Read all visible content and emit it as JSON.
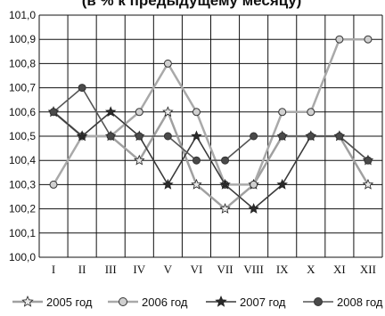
{
  "chart_data": {
    "type": "line",
    "title": "(в % к предыдущему месяцу)",
    "categories": [
      "I",
      "II",
      "III",
      "IV",
      "V",
      "VI",
      "VII",
      "VIII",
      "IX",
      "X",
      "XI",
      "XII"
    ],
    "ylim": [
      100.0,
      101.0
    ],
    "y_ticks": [
      "101,0",
      "100,9",
      "100,8",
      "100,7",
      "100,6",
      "100,5",
      "100,4",
      "100,3",
      "100,2",
      "100,1",
      "100,0"
    ],
    "grid": true,
    "legend_position": "bottom",
    "series": [
      {
        "name": "2005 год",
        "values": [
          100.6,
          100.5,
          100.5,
          100.4,
          100.6,
          100.3,
          100.2,
          100.3,
          100.5,
          100.5,
          100.5,
          100.3
        ],
        "color": "#a0a0a0",
        "marker": "star"
      },
      {
        "name": "2006 год",
        "values": [
          100.3,
          100.5,
          100.5,
          100.6,
          100.8,
          100.6,
          100.3,
          100.3,
          100.6,
          100.6,
          100.9,
          100.9
        ],
        "color": "#a9a9a9",
        "marker": "circle"
      },
      {
        "name": "2007 год",
        "values": [
          100.6,
          100.5,
          100.6,
          100.5,
          100.3,
          100.5,
          100.3,
          100.2,
          100.3,
          100.5,
          100.5,
          100.4
        ],
        "color": "#3a3a3a",
        "marker": "star"
      },
      {
        "name": "2008 год",
        "values": [
          100.6,
          100.7,
          100.5,
          100.5,
          100.5,
          100.4,
          100.4,
          100.5,
          100.5,
          100.5,
          100.5,
          100.4
        ],
        "color": "#555555",
        "marker": "circle"
      }
    ]
  }
}
